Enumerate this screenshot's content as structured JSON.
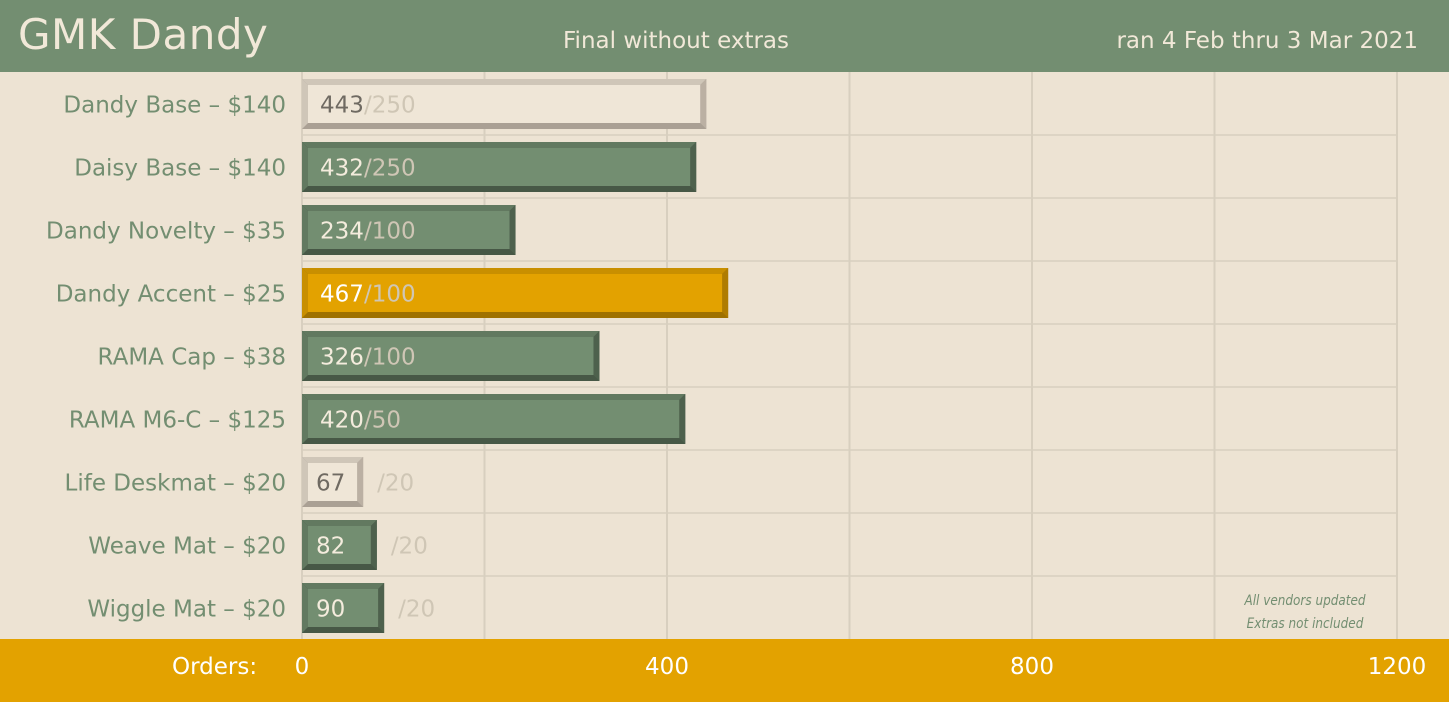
{
  "header": {
    "title": "GMK Dandy",
    "subtitle": "Final without extras",
    "date_range": "ran 4 Feb thru 3 Mar 2021"
  },
  "footer": {
    "axis_label": "Orders:"
  },
  "note": {
    "line1": "All vendors updated",
    "line2": "Extras not included"
  },
  "colors": {
    "header_bg": "#738e71",
    "background": "#ede3d3",
    "footer_bg": "#e3a200",
    "green_bar": "#738e71",
    "highlight_bar": "#e3a200",
    "light_bar": "#efe6d7",
    "label_text": "#738e71",
    "minimum_text": "#cfc6b5"
  },
  "chart_data": {
    "type": "bar",
    "orientation": "horizontal",
    "categories": [
      "Dandy Base – $140",
      "Daisy Base – $140",
      "Dandy Novelty – $35",
      "Dandy Accent – $25",
      "RAMA Cap – $38",
      "RAMA M6-C – $125",
      "Life Deskmat – $20",
      "Weave Mat – $20",
      "Wiggle Mat – $20"
    ],
    "series": [
      {
        "values": [
          443,
          432,
          234,
          467,
          326,
          420,
          67,
          82,
          90
        ]
      },
      {
        "values": [
          250,
          250,
          100,
          100,
          100,
          50,
          20,
          20,
          20
        ]
      }
    ],
    "value_labels": [
      "443",
      "432",
      "234",
      "467",
      "326",
      "420",
      "67",
      "82",
      "90"
    ],
    "minimum_labels": [
      "/250",
      "/250",
      "/100",
      "/100",
      "/100",
      "/50",
      "/20",
      "/20",
      "/20"
    ],
    "bar_styles": [
      "light",
      "green",
      "green",
      "highlight",
      "green",
      "green",
      "light",
      "green",
      "green"
    ],
    "xlim": [
      0,
      1200
    ],
    "xticks": [
      0,
      400,
      800,
      1200
    ],
    "xtick_labels": [
      "0",
      "400",
      "800",
      "1200"
    ],
    "grid": true
  }
}
